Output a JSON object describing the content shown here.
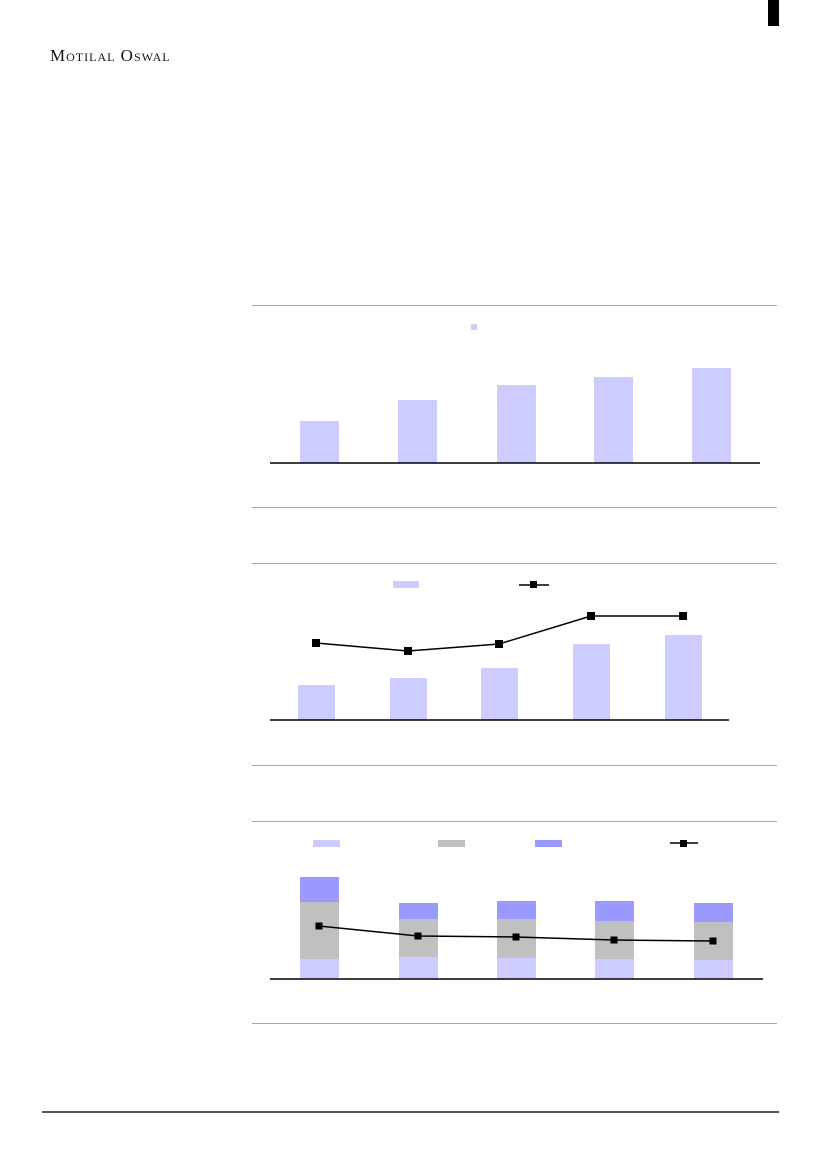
{
  "header": {
    "logo_text": "Motilal Oswal"
  },
  "colors": {
    "light_purple": "#ccccff",
    "gray": "#c0c0c0",
    "purple": "#9999ff",
    "line": "#000000",
    "rule": "#a49fd0"
  },
  "chart_data": [
    {
      "type": "bar",
      "series": [
        {
          "values": [
            42,
            63,
            78,
            86,
            95
          ]
        }
      ],
      "legend": "top-center",
      "grid": false
    },
    {
      "type": "bar+line",
      "series": [
        {
          "kind": "bar",
          "values": [
            35,
            42,
            52,
            76,
            85
          ]
        },
        {
          "kind": "line",
          "marker": "square",
          "values": [
            77,
            69,
            76,
            104,
            104
          ]
        }
      ],
      "legend": "top-center",
      "grid": false
    },
    {
      "type": "stacked-bar+line",
      "series": [
        {
          "kind": "bar",
          "color": "#ccccff",
          "values": [
            20,
            22,
            21,
            20,
            19
          ]
        },
        {
          "kind": "bar",
          "color": "#c0c0c0",
          "values": [
            57,
            38,
            39,
            38,
            38
          ]
        },
        {
          "kind": "bar",
          "color": "#9999ff",
          "values": [
            25,
            16,
            18,
            20,
            19
          ]
        },
        {
          "kind": "line",
          "marker": "x-square",
          "values": [
            53,
            43,
            42,
            39,
            38
          ]
        }
      ],
      "legend": "top",
      "grid": false
    }
  ]
}
